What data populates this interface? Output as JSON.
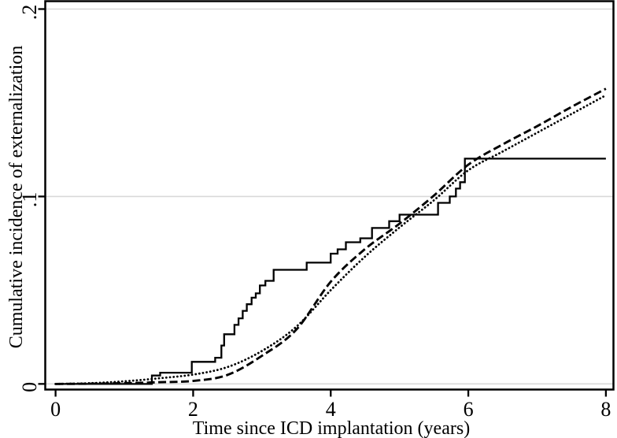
{
  "colors": {
    "background": "#ffffff",
    "curves": "#000000",
    "gridlines": "#d9d9d9",
    "text": "#000000"
  },
  "chart_data": {
    "type": "line",
    "title": "",
    "xlabel": "Time since ICD implantation (years)",
    "ylabel": "Cumulative incidence of externalization",
    "xlim": [
      -0.15,
      8.11
    ],
    "ylim": [
      -0.003,
      0.2042
    ],
    "grid": "horizontal",
    "legend": "none",
    "x_ticks": [
      {
        "value": 0,
        "label": "0"
      },
      {
        "value": 2,
        "label": "2"
      },
      {
        "value": 4,
        "label": "4"
      },
      {
        "value": 6,
        "label": "6"
      },
      {
        "value": 8,
        "label": "8"
      }
    ],
    "y_ticks": [
      {
        "value": 0,
        "label": "0"
      },
      {
        "value": 0.1,
        "label": ".1"
      },
      {
        "value": 0.2,
        "label": ".2"
      }
    ],
    "series": [
      {
        "name": "observed-cumulative-incidence",
        "line_style": "solid",
        "interpolation": "step-after",
        "points": [
          [
            0,
            0
          ],
          [
            1.4,
            0.0045
          ],
          [
            1.52,
            0.006
          ],
          [
            1.98,
            0.0118
          ],
          [
            2.32,
            0.014
          ],
          [
            2.41,
            0.0205
          ],
          [
            2.45,
            0.0265
          ],
          [
            2.6,
            0.0315
          ],
          [
            2.66,
            0.035
          ],
          [
            2.72,
            0.039
          ],
          [
            2.78,
            0.0425
          ],
          [
            2.85,
            0.046
          ],
          [
            2.91,
            0.0483
          ],
          [
            2.97,
            0.0525
          ],
          [
            3.05,
            0.055
          ],
          [
            3.17,
            0.0609
          ],
          [
            3.65,
            0.0647
          ],
          [
            4.0,
            0.0695
          ],
          [
            4.1,
            0.0718
          ],
          [
            4.22,
            0.0756
          ],
          [
            4.43,
            0.0777
          ],
          [
            4.6,
            0.0832
          ],
          [
            4.85,
            0.0868
          ],
          [
            5.0,
            0.0903
          ],
          [
            5.56,
            0.0966
          ],
          [
            5.73,
            0.1
          ],
          [
            5.82,
            0.1042
          ],
          [
            5.88,
            0.1076
          ],
          [
            5.95,
            0.1202
          ],
          [
            8.0,
            0.1202
          ]
        ]
      },
      {
        "name": "smoothed-estimate-dashed",
        "line_style": "dashed",
        "interpolation": "smooth",
        "points": [
          [
            0,
            0
          ],
          [
            0.5,
            0.0001
          ],
          [
            1.0,
            0.0004
          ],
          [
            1.5,
            0.0009
          ],
          [
            2.0,
            0.0016
          ],
          [
            2.5,
            0.0048
          ],
          [
            3.0,
            0.015
          ],
          [
            3.5,
            0.029
          ],
          [
            4.0,
            0.0545
          ],
          [
            4.5,
            0.072
          ],
          [
            5.0,
            0.0855
          ],
          [
            5.5,
            0.1005
          ],
          [
            6.0,
            0.117
          ],
          [
            6.5,
            0.1278
          ],
          [
            7.0,
            0.1375
          ],
          [
            7.5,
            0.1478
          ],
          [
            8.0,
            0.1575
          ]
        ]
      },
      {
        "name": "smoothed-estimate-dotted",
        "line_style": "dotted",
        "interpolation": "smooth",
        "points": [
          [
            0,
            0
          ],
          [
            0.5,
            0.0004
          ],
          [
            1.0,
            0.0014
          ],
          [
            1.5,
            0.003
          ],
          [
            2.0,
            0.005
          ],
          [
            2.5,
            0.009
          ],
          [
            3.0,
            0.0176
          ],
          [
            3.5,
            0.0305
          ],
          [
            4.0,
            0.05
          ],
          [
            4.5,
            0.068
          ],
          [
            5.0,
            0.0835
          ],
          [
            5.5,
            0.098
          ],
          [
            6.0,
            0.114
          ],
          [
            6.5,
            0.124
          ],
          [
            7.0,
            0.134
          ],
          [
            7.5,
            0.144
          ],
          [
            8.0,
            0.154
          ]
        ]
      }
    ]
  }
}
